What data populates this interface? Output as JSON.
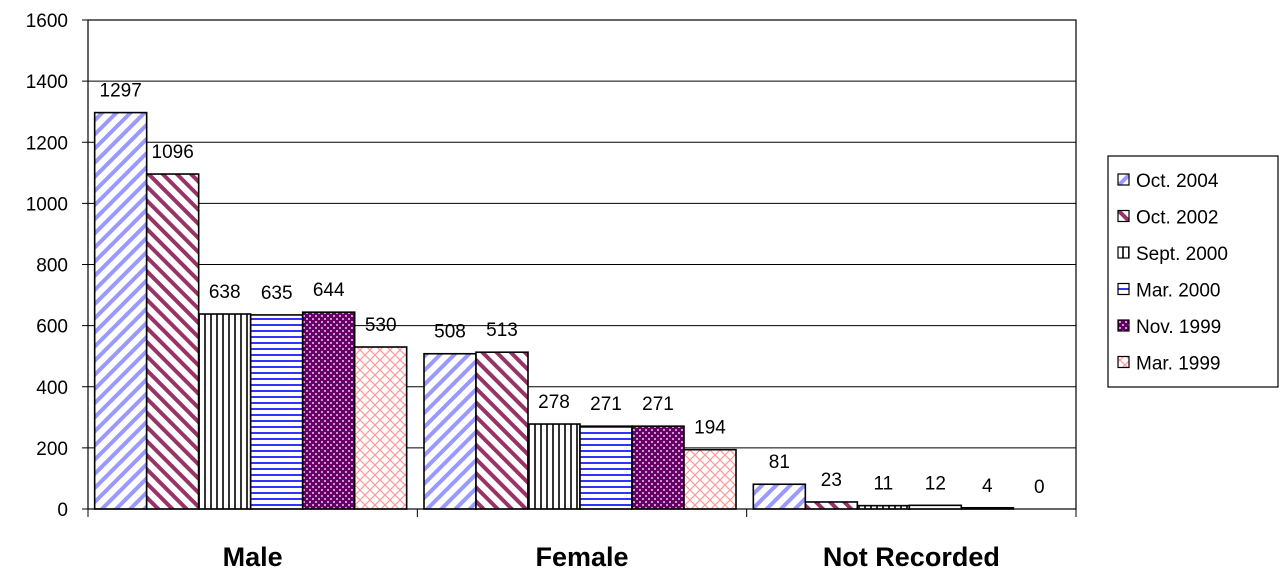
{
  "chart_data": {
    "type": "bar",
    "title": "",
    "xlabel": "",
    "ylabel": "",
    "categories": [
      "Male",
      "Female",
      "Not Recorded"
    ],
    "ylim": [
      0,
      1600
    ],
    "yticks": [
      0,
      200,
      400,
      600,
      800,
      1000,
      1200,
      1400,
      1600
    ],
    "grid": true,
    "legend_position": "right",
    "series": [
      {
        "name": "Oct. 2004",
        "values": [
          1297,
          508,
          81
        ],
        "color": "#9999ff",
        "pattern": "diagonal-down"
      },
      {
        "name": "Oct. 2002",
        "values": [
          1096,
          513,
          23
        ],
        "color": "#993366",
        "pattern": "diagonal-up"
      },
      {
        "name": "Sept. 2000",
        "values": [
          638,
          278,
          11
        ],
        "color": "#333333",
        "pattern": "vertical"
      },
      {
        "name": "Mar. 2000",
        "values": [
          635,
          271,
          12
        ],
        "color": "#3333ff",
        "pattern": "horizontal"
      },
      {
        "name": "Nov. 1999",
        "values": [
          644,
          271,
          4
        ],
        "color": "#660066",
        "pattern": "checker"
      },
      {
        "name": "Mar. 1999",
        "values": [
          530,
          194,
          0
        ],
        "color": "#ff9999",
        "pattern": "crosshatch"
      }
    ]
  }
}
